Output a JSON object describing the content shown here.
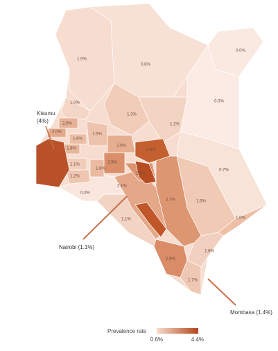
{
  "regions": [
    {
      "label": "1.0%",
      "color": "#f6ddd0"
    },
    {
      "label": "0.8%",
      "color": "#f7e0d4"
    },
    {
      "label": "0.0%",
      "color": "#fae9e1"
    },
    {
      "label": "1.0%",
      "color": "#f4d6c7"
    },
    {
      "label": "1.3%",
      "color": "#f1cdb9"
    },
    {
      "label": "0.0%",
      "color": "#fbebe4"
    },
    {
      "label": "1.2%",
      "color": "#f3d3c2"
    },
    {
      "label": "0.7%",
      "color": "#f8e3d8"
    },
    {
      "label": "1.5%",
      "color": "#f0cab5"
    },
    {
      "label": "1.0%",
      "color": "#edbfa6"
    },
    {
      "label": "1.6%",
      "color": "#f2d0bf"
    },
    {
      "label": "1.7%",
      "color": "#efc8b3"
    },
    {
      "label": "2.8%",
      "color": "#d98c66"
    },
    {
      "label": "2.7%",
      "color": "#dd9672"
    },
    {
      "label": "1.1%",
      "color": "#f3d3c3"
    },
    {
      "label": "0.0%",
      "color": "#f9e7de"
    },
    {
      "label": "2.1%",
      "color": "#e4a888"
    },
    {
      "label": "2.5%",
      "color": "#dc9470"
    },
    {
      "label": "3.6%",
      "color": "#c4602f"
    },
    {
      "label": "2.9%",
      "color": "#da8f6a"
    },
    {
      "label": "2.0%",
      "color": "#e6ae90"
    },
    {
      "label": "1.8%",
      "color": "#ebbba1"
    },
    {
      "label": "1.5%",
      "color": "#eec3ad"
    },
    {
      "label": "2.0%",
      "color": "#e7b195"
    },
    {
      "label": "2.0%",
      "color": "#e4a98a"
    },
    {
      "label": "1.6%",
      "color": "#ecbea6"
    },
    {
      "label": "1.8%",
      "color": "#e9b69b"
    },
    {
      "label": "1.1%",
      "color": "#f1cdba"
    },
    {
      "label": "1.2%",
      "color": "#efc6b0"
    }
  ],
  "annotations": {
    "kisumu": [
      "Kisumu",
      "(4%)"
    ],
    "nairobi": "Nairobi (1.1%)",
    "mombasa": "Mombasa (1.4%)"
  },
  "legend": {
    "title": "Prevalence rate",
    "min_label": "0.6%",
    "max_label": "4.4%",
    "color_min": "#f8dccd",
    "color_max": "#b5451b"
  }
}
